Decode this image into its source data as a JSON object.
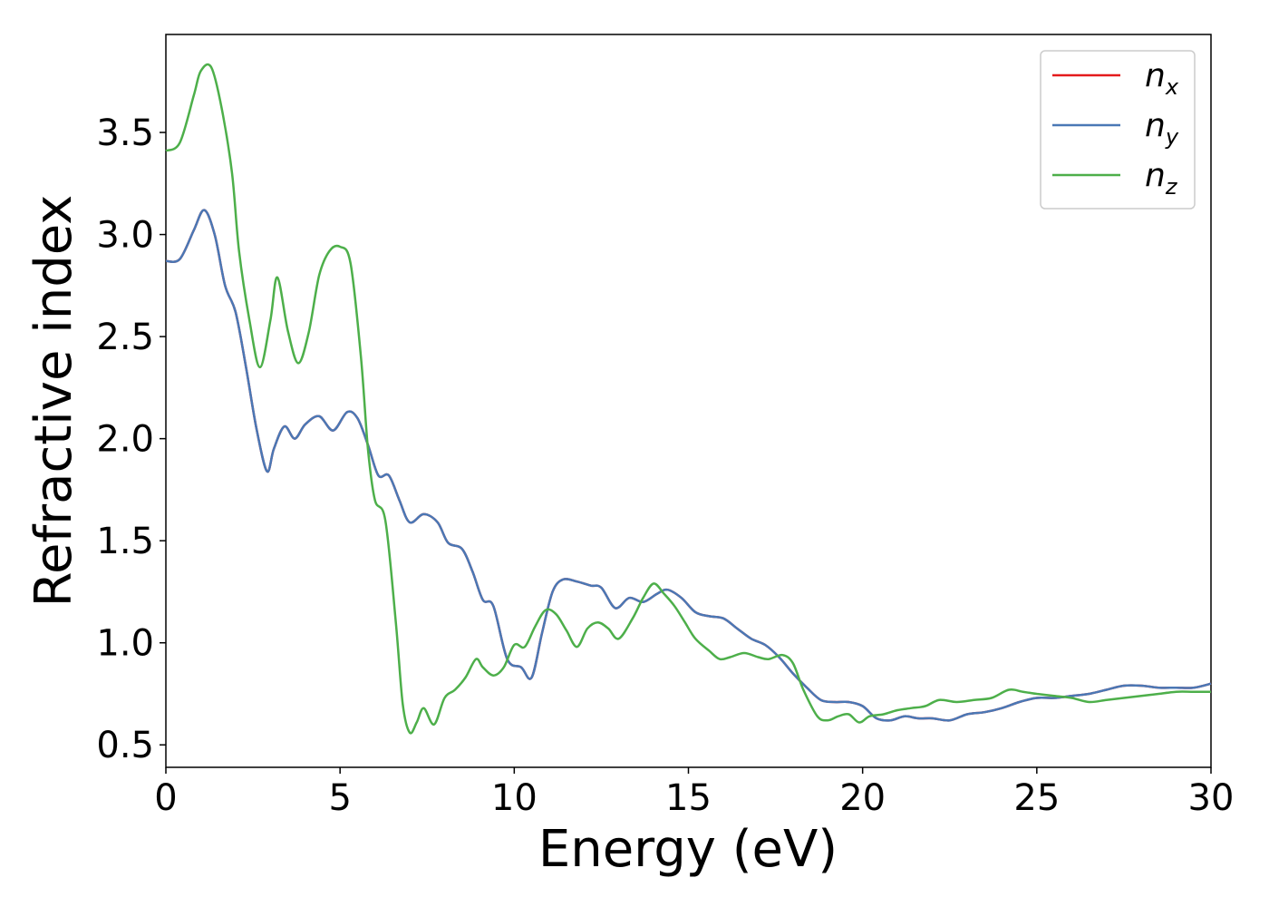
{
  "chart_data": {
    "type": "line",
    "title": "",
    "xlabel": "Energy (eV)",
    "ylabel": "Refractive index",
    "xlim": [
      0,
      30
    ],
    "ylim": [
      0.39,
      3.98
    ],
    "xticks": [
      0,
      5,
      10,
      15,
      20,
      25,
      30
    ],
    "xtick_labels": [
      "0",
      "5",
      "10",
      "15",
      "20",
      "25",
      "30"
    ],
    "yticks": [
      0.5,
      1.0,
      1.5,
      2.0,
      2.5,
      3.0,
      3.5
    ],
    "ytick_labels": [
      "0.5",
      "1.0",
      "1.5",
      "2.0",
      "2.5",
      "3.0",
      "3.5"
    ],
    "grid": false,
    "legend_position": "top-right",
    "series": [
      {
        "name": "n_x",
        "label_main": "n",
        "label_sub": "x",
        "color": "#e41a1c",
        "x": [
          0,
          0.4,
          0.8,
          1.1,
          1.4,
          1.7,
          2.0,
          2.3,
          2.6,
          2.9,
          3.1,
          3.4,
          3.7,
          4.0,
          4.4,
          4.8,
          5.2,
          5.5,
          5.8,
          6.1,
          6.4,
          6.7,
          7.0,
          7.4,
          7.8,
          8.1,
          8.5,
          8.8,
          9.1,
          9.4,
          9.8,
          10.2,
          10.5,
          10.8,
          11.1,
          11.4,
          11.8,
          12.2,
          12.5,
          12.9,
          13.3,
          13.7,
          14.1,
          14.4,
          14.8,
          15.2,
          15.6,
          16.0,
          16.4,
          16.8,
          17.2,
          17.6,
          18.0,
          18.4,
          18.8,
          19.2,
          19.6,
          20.0,
          20.4,
          20.8,
          21.2,
          21.6,
          22.0,
          22.5,
          23.0,
          23.5,
          24.0,
          24.5,
          25.0,
          25.5,
          26.0,
          26.5,
          27.0,
          27.5,
          28.0,
          28.5,
          29.0,
          29.5,
          30.0
        ],
        "values": [
          2.87,
          2.88,
          3.02,
          3.12,
          3.0,
          2.75,
          2.62,
          2.35,
          2.05,
          1.84,
          1.95,
          2.06,
          2.0,
          2.07,
          2.11,
          2.04,
          2.13,
          2.1,
          1.97,
          1.82,
          1.82,
          1.7,
          1.59,
          1.63,
          1.59,
          1.49,
          1.46,
          1.35,
          1.21,
          1.18,
          0.92,
          0.88,
          0.83,
          1.05,
          1.25,
          1.31,
          1.3,
          1.28,
          1.27,
          1.17,
          1.22,
          1.2,
          1.24,
          1.26,
          1.22,
          1.15,
          1.13,
          1.12,
          1.07,
          1.02,
          0.99,
          0.93,
          0.85,
          0.78,
          0.72,
          0.71,
          0.71,
          0.69,
          0.63,
          0.62,
          0.64,
          0.63,
          0.63,
          0.62,
          0.65,
          0.66,
          0.68,
          0.71,
          0.73,
          0.73,
          0.74,
          0.75,
          0.77,
          0.79,
          0.79,
          0.78,
          0.78,
          0.78,
          0.8
        ]
      },
      {
        "name": "n_y",
        "label_main": "n",
        "label_sub": "y",
        "color": "#4a78b5",
        "x": [
          0,
          0.4,
          0.8,
          1.1,
          1.4,
          1.7,
          2.0,
          2.3,
          2.6,
          2.9,
          3.1,
          3.4,
          3.7,
          4.0,
          4.4,
          4.8,
          5.2,
          5.5,
          5.8,
          6.1,
          6.4,
          6.7,
          7.0,
          7.4,
          7.8,
          8.1,
          8.5,
          8.8,
          9.1,
          9.4,
          9.8,
          10.2,
          10.5,
          10.8,
          11.1,
          11.4,
          11.8,
          12.2,
          12.5,
          12.9,
          13.3,
          13.7,
          14.1,
          14.4,
          14.8,
          15.2,
          15.6,
          16.0,
          16.4,
          16.8,
          17.2,
          17.6,
          18.0,
          18.4,
          18.8,
          19.2,
          19.6,
          20.0,
          20.4,
          20.8,
          21.2,
          21.6,
          22.0,
          22.5,
          23.0,
          23.5,
          24.0,
          24.5,
          25.0,
          25.5,
          26.0,
          26.5,
          27.0,
          27.5,
          28.0,
          28.5,
          29.0,
          29.5,
          30.0
        ],
        "values": [
          2.87,
          2.88,
          3.02,
          3.12,
          3.0,
          2.75,
          2.62,
          2.35,
          2.05,
          1.84,
          1.95,
          2.06,
          2.0,
          2.07,
          2.11,
          2.04,
          2.13,
          2.1,
          1.97,
          1.82,
          1.82,
          1.7,
          1.59,
          1.63,
          1.59,
          1.49,
          1.46,
          1.35,
          1.21,
          1.18,
          0.92,
          0.88,
          0.83,
          1.05,
          1.25,
          1.31,
          1.3,
          1.28,
          1.27,
          1.17,
          1.22,
          1.2,
          1.24,
          1.26,
          1.22,
          1.15,
          1.13,
          1.12,
          1.07,
          1.02,
          0.99,
          0.93,
          0.85,
          0.78,
          0.72,
          0.71,
          0.71,
          0.69,
          0.63,
          0.62,
          0.64,
          0.63,
          0.63,
          0.62,
          0.65,
          0.66,
          0.68,
          0.71,
          0.73,
          0.73,
          0.74,
          0.75,
          0.77,
          0.79,
          0.79,
          0.78,
          0.78,
          0.78,
          0.8
        ]
      },
      {
        "name": "n_z",
        "label_main": "n",
        "label_sub": "z",
        "color": "#4daf4a",
        "x": [
          0,
          0.4,
          0.8,
          1.0,
          1.3,
          1.6,
          1.9,
          2.1,
          2.4,
          2.7,
          3.0,
          3.2,
          3.5,
          3.8,
          4.1,
          4.4,
          4.7,
          5.0,
          5.3,
          5.6,
          5.8,
          6.0,
          6.3,
          6.6,
          6.8,
          7.0,
          7.2,
          7.4,
          7.7,
          8.0,
          8.3,
          8.6,
          8.9,
          9.1,
          9.4,
          9.7,
          10.0,
          10.3,
          10.6,
          10.9,
          11.2,
          11.5,
          11.8,
          12.1,
          12.4,
          12.7,
          13.0,
          13.4,
          13.7,
          14.0,
          14.3,
          14.6,
          14.9,
          15.2,
          15.6,
          15.9,
          16.2,
          16.6,
          17.0,
          17.3,
          17.7,
          18.0,
          18.3,
          18.7,
          19.0,
          19.3,
          19.6,
          19.9,
          20.2,
          20.6,
          21.0,
          21.4,
          21.8,
          22.2,
          22.7,
          23.2,
          23.7,
          24.2,
          24.6,
          25.0,
          25.5,
          26.0,
          26.5,
          27.0,
          27.5,
          28.0,
          28.5,
          29.0,
          29.5,
          30.0
        ],
        "values": [
          3.41,
          3.45,
          3.68,
          3.8,
          3.82,
          3.62,
          3.3,
          2.92,
          2.58,
          2.35,
          2.58,
          2.79,
          2.53,
          2.37,
          2.52,
          2.8,
          2.92,
          2.94,
          2.86,
          2.4,
          1.95,
          1.7,
          1.6,
          1.1,
          0.7,
          0.56,
          0.61,
          0.68,
          0.6,
          0.73,
          0.77,
          0.83,
          0.92,
          0.88,
          0.84,
          0.88,
          0.99,
          0.98,
          1.08,
          1.16,
          1.14,
          1.06,
          0.98,
          1.07,
          1.1,
          1.07,
          1.02,
          1.12,
          1.22,
          1.29,
          1.24,
          1.18,
          1.1,
          1.02,
          0.96,
          0.92,
          0.93,
          0.95,
          0.93,
          0.92,
          0.94,
          0.9,
          0.77,
          0.64,
          0.62,
          0.64,
          0.65,
          0.61,
          0.64,
          0.65,
          0.67,
          0.68,
          0.69,
          0.72,
          0.71,
          0.72,
          0.73,
          0.77,
          0.76,
          0.75,
          0.74,
          0.73,
          0.71,
          0.72,
          0.73,
          0.74,
          0.75,
          0.76,
          0.76,
          0.76
        ]
      }
    ]
  }
}
